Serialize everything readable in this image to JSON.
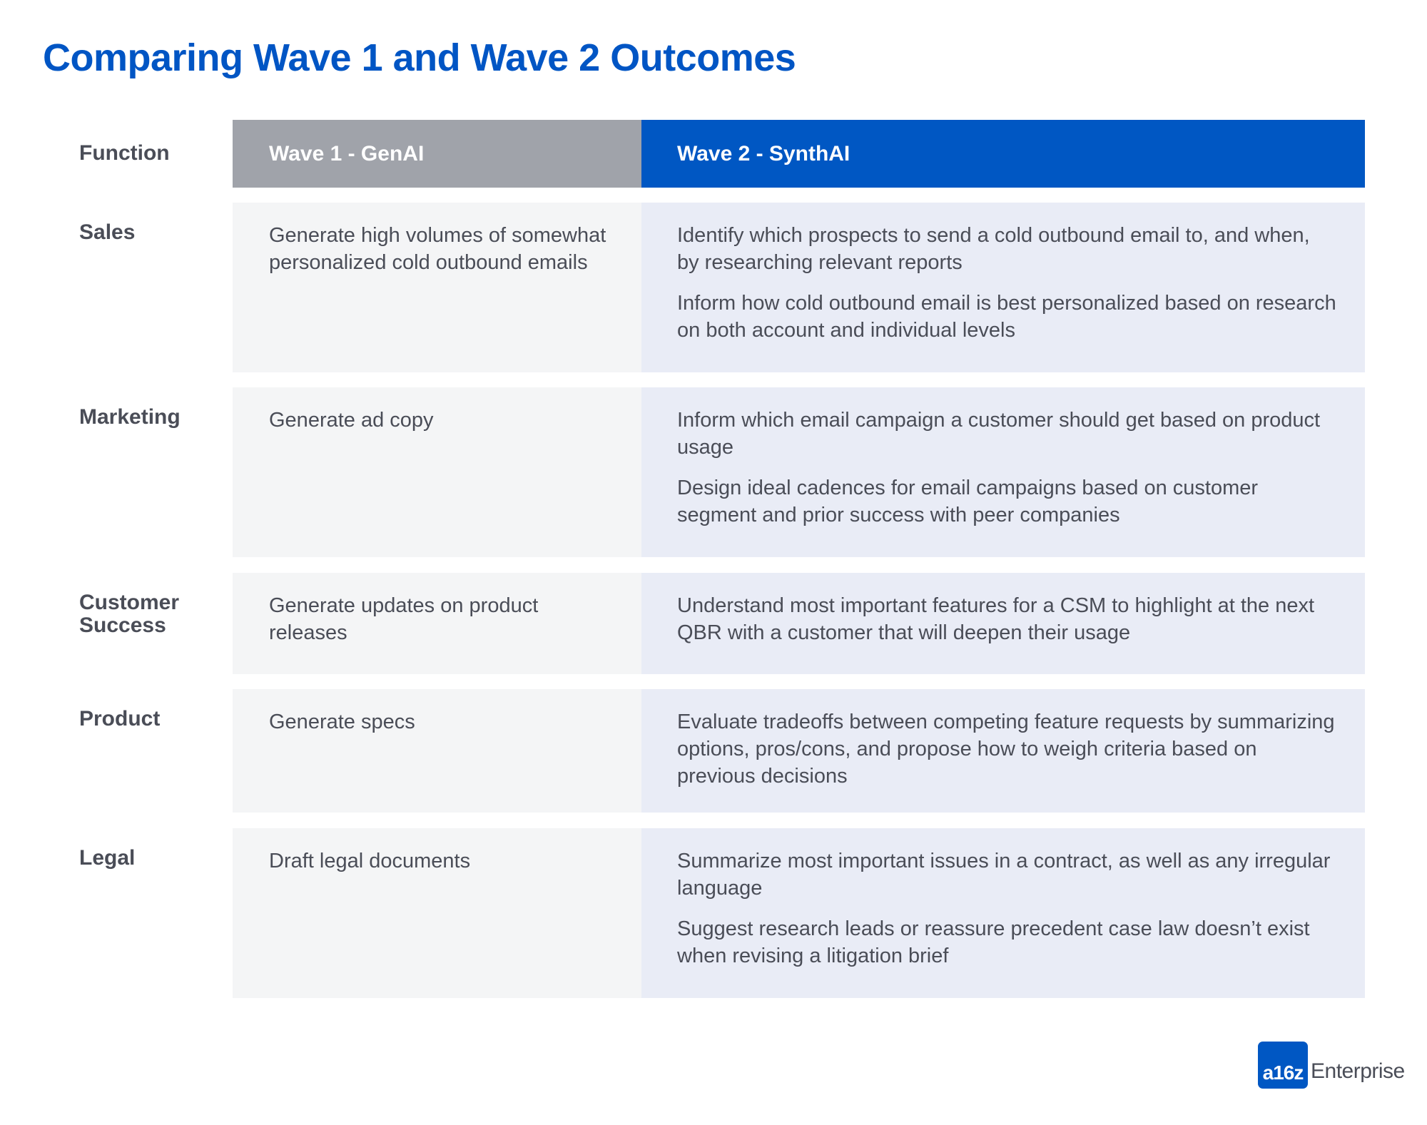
{
  "title": "Comparing Wave 1 and Wave 2 Outcomes",
  "header": {
    "function_label": "Function",
    "wave1_label": "Wave 1 - GenAI",
    "wave2_label": "Wave 2 - SynthAI"
  },
  "colors": {
    "title": "#0055C4",
    "wave1_header_bg": "#a0a3aa",
    "wave2_header_bg": "#0057C3",
    "wave1_cell_bg": "#f4f5f6",
    "wave2_cell_bg": "#e9ecf6",
    "body_text": "#4a4d57"
  },
  "rows": [
    {
      "function": "Sales",
      "wave1": "Generate high volumes of somewhat personalized cold outbound emails",
      "wave2": [
        "Identify which prospects to send a cold outbound email to, and when, by researching relevant reports",
        "Inform how cold outbound email is best personalized based on research on both account and individual levels"
      ]
    },
    {
      "function": "Marketing",
      "wave1": "Generate ad copy",
      "wave2": [
        "Inform which email campaign a customer should get based on product usage",
        "Design ideal cadences for email campaigns based on customer segment and prior success with peer companies"
      ]
    },
    {
      "function": "Customer Success",
      "wave1": "Generate updates on product releases",
      "wave2": [
        "Understand most important features for a CSM to highlight at the next QBR with a customer that will deepen their usage"
      ]
    },
    {
      "function": "Product",
      "wave1": "Generate specs",
      "wave2": [
        "Evaluate tradeoffs between competing feature requests by summarizing options, pros/cons, and propose how to weigh criteria based on previous decisions"
      ]
    },
    {
      "function": "Legal",
      "wave1": "Draft legal documents",
      "wave2": [
        "Summarize most important issues in a contract, as well as any irregular language",
        "Suggest research leads or reassure precedent case law doesn’t exist when revising a litigation brief"
      ]
    }
  ],
  "logo": {
    "badge": "a16z",
    "text": "Enterprise"
  }
}
